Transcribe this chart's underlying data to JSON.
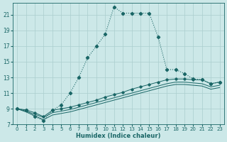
{
  "xlabel": "Humidex (Indice chaleur)",
  "bg_color": "#cce8e8",
  "grid_color": "#aacece",
  "line_color": "#1a6666",
  "xlim": [
    -0.5,
    23.5
  ],
  "ylim": [
    7,
    22.5
  ],
  "yticks": [
    7,
    9,
    11,
    13,
    15,
    17,
    19,
    21
  ],
  "xticks": [
    0,
    1,
    2,
    3,
    4,
    5,
    6,
    7,
    8,
    9,
    10,
    11,
    12,
    13,
    14,
    15,
    16,
    17,
    18,
    19,
    20,
    21,
    22,
    23
  ],
  "main_x": [
    0,
    1,
    2,
    3,
    4,
    5,
    6,
    7,
    8,
    9,
    10,
    11,
    12,
    13,
    14,
    15,
    16,
    17,
    18,
    19,
    20,
    21,
    22,
    23
  ],
  "main_y": [
    9.0,
    8.8,
    8.0,
    7.5,
    8.8,
    9.5,
    11.0,
    13.0,
    15.5,
    17.0,
    18.5,
    22.0,
    21.2,
    21.2,
    21.2,
    21.2,
    18.2,
    14.0,
    14.0,
    13.5,
    12.8,
    12.7,
    12.2,
    12.4
  ],
  "flat1_x": [
    0,
    1,
    2,
    3,
    4,
    5,
    6,
    7,
    8,
    9,
    10,
    11,
    12,
    13,
    14,
    15,
    16,
    17,
    18,
    19,
    20,
    21,
    22,
    23
  ],
  "flat1_y": [
    9.0,
    8.85,
    8.5,
    8.0,
    8.8,
    9.0,
    9.2,
    9.5,
    9.8,
    10.1,
    10.5,
    10.8,
    11.1,
    11.5,
    11.8,
    12.1,
    12.4,
    12.7,
    12.8,
    12.8,
    12.7,
    12.7,
    12.2,
    12.4
  ],
  "flat2_x": [
    0,
    1,
    2,
    3,
    4,
    5,
    6,
    7,
    8,
    9,
    10,
    11,
    12,
    13,
    14,
    15,
    16,
    17,
    18,
    19,
    20,
    21,
    22,
    23
  ],
  "flat2_y": [
    9.0,
    8.7,
    8.3,
    7.9,
    8.5,
    8.7,
    8.9,
    9.2,
    9.5,
    9.8,
    10.1,
    10.4,
    10.7,
    11.0,
    11.3,
    11.6,
    11.9,
    12.2,
    12.4,
    12.4,
    12.3,
    12.2,
    11.8,
    12.0
  ],
  "flat3_x": [
    0,
    1,
    2,
    3,
    4,
    5,
    6,
    7,
    8,
    9,
    10,
    11,
    12,
    13,
    14,
    15,
    16,
    17,
    18,
    19,
    20,
    21,
    22,
    23
  ],
  "flat3_y": [
    9.0,
    8.6,
    8.1,
    7.6,
    8.2,
    8.4,
    8.6,
    8.9,
    9.2,
    9.5,
    9.8,
    10.1,
    10.4,
    10.7,
    11.0,
    11.3,
    11.6,
    11.9,
    12.1,
    12.1,
    12.0,
    11.9,
    11.5,
    11.7
  ]
}
